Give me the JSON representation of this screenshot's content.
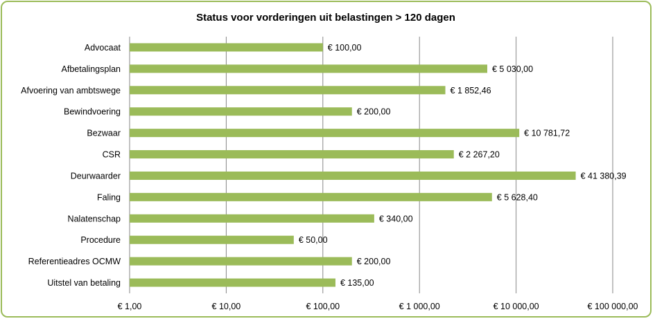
{
  "chart_data": {
    "type": "bar",
    "orientation": "horizontal",
    "title": "Status voor vorderingen uit belastingen > 120 dagen",
    "xlabel": "",
    "ylabel": "",
    "x_scale": "log",
    "xlim": [
      1,
      100000
    ],
    "grid": true,
    "legend": "none",
    "bar_color": "#9bbb59",
    "categories": [
      "Advocaat",
      "Afbetalingsplan",
      "Afvoering van ambtswege",
      "Bewindvoering",
      "Bezwaar",
      "CSR",
      "Deurwaarder",
      "Faling",
      "Nalatenschap",
      "Procedure",
      "Referentieadres OCMW",
      "Uitstel van betaling"
    ],
    "values": [
      100,
      5030,
      1852.46,
      200,
      10781.72,
      2267.2,
      41380.39,
      5628.4,
      340,
      50,
      200,
      135
    ],
    "value_labels": [
      "€  100,00",
      "€ 5 030,00",
      "€ 1 852,46",
      "€  200,00",
      "€ 10 781,72",
      "€ 2 267,20",
      "€ 41 380,39",
      "€ 5 628,40",
      "€  340,00",
      "€  50,00",
      "€  200,00",
      "€  135,00"
    ],
    "tick_values": [
      1,
      10,
      100,
      1000,
      10000,
      100000
    ],
    "tick_labels": [
      "€  1,00",
      "€  10,00",
      "€  100,00",
      "€ 1 000,00",
      "€ 10 000,00",
      "€ 100 000,00"
    ]
  }
}
